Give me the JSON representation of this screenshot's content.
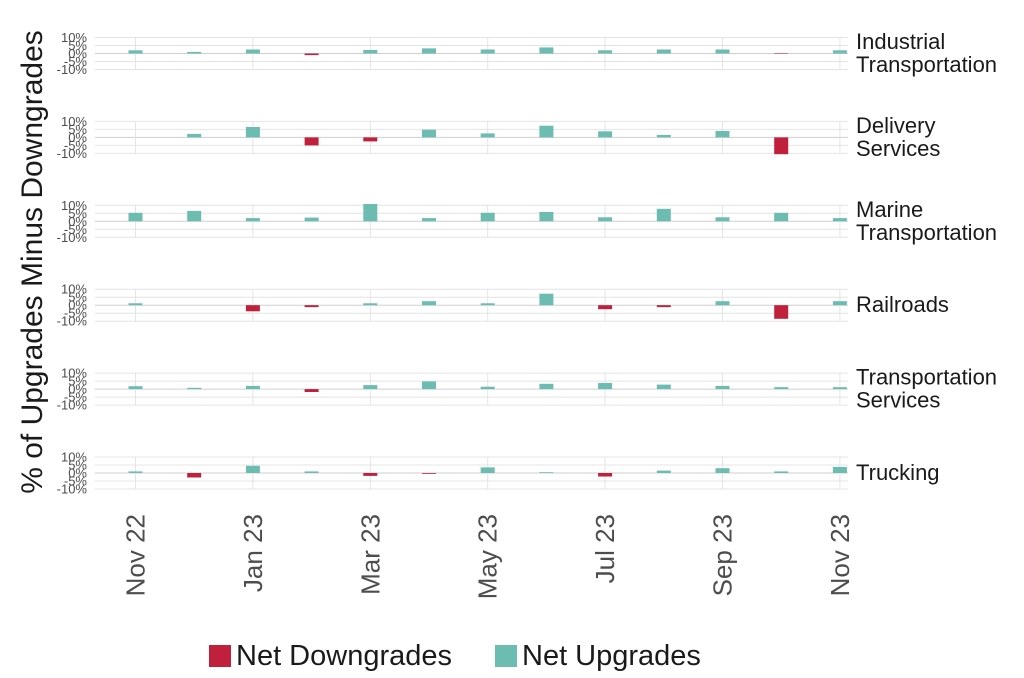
{
  "chart_data": {
    "type": "bar",
    "title": "",
    "ylabel": "% of Upgrades Minus Downgrades",
    "ylim": [
      -10,
      10
    ],
    "yticks": [
      10,
      5,
      0,
      -5,
      -10
    ],
    "ytick_labels": [
      "10%",
      "5%",
      "0%",
      "-5%",
      "-10%"
    ],
    "months": [
      "Nov 22",
      "Dec 22",
      "Jan 23",
      "Feb 23",
      "Mar 23",
      "Apr 23",
      "May 23",
      "Jun 23",
      "Jul 23",
      "Aug 23",
      "Sep 23",
      "Oct 23",
      "Nov 23"
    ],
    "xtick_labels": [
      "Nov 22",
      "Jan 23",
      "Mar 23",
      "May 23",
      "Jul 23",
      "Sep 23",
      "Nov 23"
    ],
    "grid": true,
    "legend": {
      "position": "bottom",
      "items": [
        {
          "label": "Net Downgrades",
          "color": "#c0203c"
        },
        {
          "label": "Net Upgrades",
          "color": "#6cbcb2"
        }
      ]
    },
    "facets": [
      {
        "label_lines": [
          "Industrial",
          "Transportation"
        ],
        "values": [
          2,
          1,
          2.5,
          -1,
          2.2,
          3.2,
          2.5,
          3.8,
          2,
          2.5,
          2.5,
          -0.3,
          2
        ]
      },
      {
        "label_lines": [
          "Delivery",
          "Services"
        ],
        "values": [
          0,
          2.2,
          6.5,
          -5,
          -2.5,
          4.8,
          2.5,
          7.3,
          3.8,
          1.5,
          4,
          -10.5,
          0
        ]
      },
      {
        "label_lines": [
          "Marine",
          "Transportation"
        ],
        "values": [
          5.3,
          6.5,
          2,
          2.3,
          10.8,
          2,
          5.3,
          5.8,
          2.5,
          7.8,
          2.5,
          5.3,
          2
        ]
      },
      {
        "label_lines": [
          "Railroads"
        ],
        "values": [
          1.2,
          0,
          -3.8,
          -1.2,
          1.2,
          2.5,
          1.2,
          7.2,
          -2.5,
          -1.2,
          2.5,
          -8.5,
          2.5
        ]
      },
      {
        "label_lines": [
          "Transportation",
          "Services"
        ],
        "values": [
          1.8,
          0.8,
          2,
          -1.8,
          2.5,
          4.8,
          1.5,
          3.3,
          3.8,
          2.8,
          2,
          1.2,
          1.2
        ]
      },
      {
        "label_lines": [
          "Trucking"
        ],
        "values": [
          1,
          -2.8,
          4.5,
          1,
          -1.8,
          -0.5,
          3.5,
          0.5,
          -2.2,
          1.5,
          3,
          1,
          3.8
        ]
      }
    ]
  }
}
